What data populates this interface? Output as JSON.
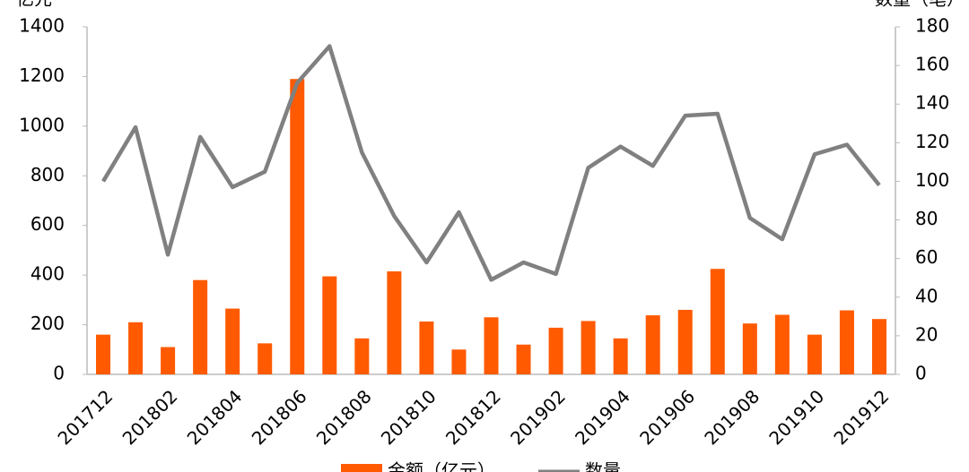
{
  "chart_data": {
    "type": "bar-line",
    "y_label": "亿元",
    "y2_label": "数量（笔）",
    "categories": [
      "201712",
      null,
      "201802",
      null,
      "201804",
      null,
      "201806",
      null,
      "201808",
      null,
      "201810",
      null,
      "201812",
      null,
      "201902",
      null,
      "201904",
      null,
      "201906",
      null,
      "201908",
      null,
      "201910",
      null,
      "201912"
    ],
    "series": [
      {
        "name": "金额（亿元）",
        "type": "bar",
        "color": "#ff5a00",
        "values": [
          160,
          210,
          110,
          380,
          265,
          125,
          1190,
          395,
          145,
          415,
          213,
          100,
          230,
          120,
          188,
          215,
          145,
          238,
          260,
          425,
          205,
          240,
          160,
          258,
          223
        ]
      },
      {
        "name": "数量",
        "type": "line",
        "axis": "y2",
        "color": "#808080",
        "values": [
          100,
          128,
          62,
          123,
          97,
          105,
          151,
          170,
          115,
          82,
          58,
          84,
          49,
          58,
          52,
          107,
          118,
          108,
          134,
          135,
          81,
          70,
          114,
          119,
          98
        ]
      }
    ],
    "ylim": [
      0,
      1400
    ],
    "yticks": [
      0,
      200,
      400,
      600,
      800,
      1000,
      1200,
      1400
    ],
    "y2lim": [
      0,
      180
    ],
    "y2ticks": [
      0,
      20,
      40,
      60,
      80,
      100,
      120,
      140,
      160,
      180
    ],
    "legend": "bottom"
  }
}
